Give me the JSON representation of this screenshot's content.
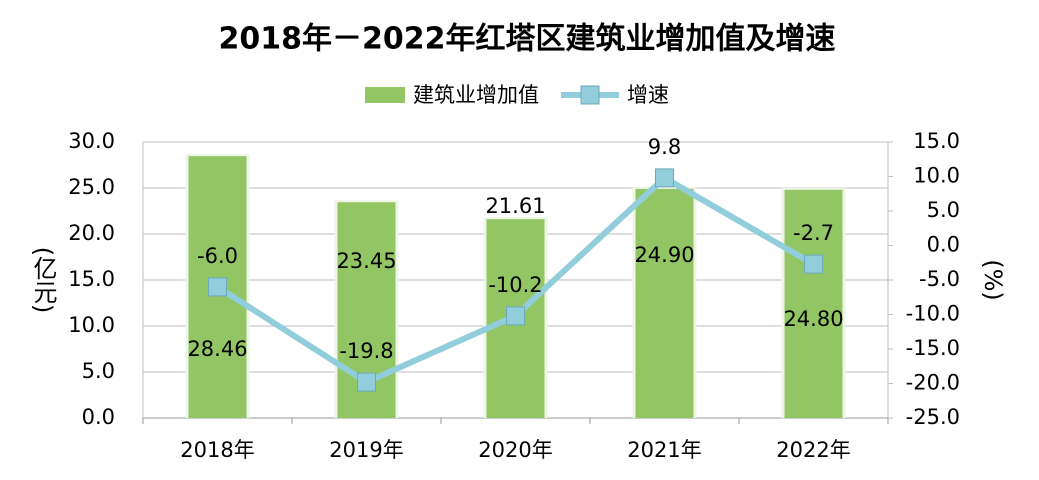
{
  "chart_data": {
    "type": "combo",
    "title": "2018年－2022年红塔区建筑业增加值及增速",
    "categories": [
      "2018年",
      "2019年",
      "2020年",
      "2021年",
      "2022年"
    ],
    "series": [
      {
        "name": "建筑业增加值",
        "type": "bar",
        "color": "#92c665",
        "values": [
          28.46,
          23.45,
          21.61,
          24.9,
          24.8
        ],
        "value_labels": [
          "28.46",
          "23.45",
          "21.61",
          "24.90",
          "24.80"
        ]
      },
      {
        "name": "增速",
        "type": "line",
        "axis": "y2",
        "color": "#92cddc",
        "values": [
          -6,
          -19.8,
          -10.2,
          9.8,
          -2.7
        ],
        "value_labels": [
          "-6.0",
          "-19.8",
          "-10.2",
          "9.8",
          "-2.7"
        ]
      }
    ],
    "ylabel": "(亿元)",
    "y2label": "(%)",
    "ylim": [
      0,
      30
    ],
    "yticks": [
      {
        "value": 0,
        "label": "0.0"
      },
      {
        "value": 5,
        "label": "5.0"
      },
      {
        "value": 10,
        "label": "10.0"
      },
      {
        "value": 15,
        "label": "15.0"
      },
      {
        "value": 20,
        "label": "20.0"
      },
      {
        "value": 25,
        "label": "25.0"
      },
      {
        "value": 30,
        "label": "30.0"
      }
    ],
    "y2lim": [
      -25,
      15
    ],
    "y2ticks": [
      {
        "value": -25,
        "label": "-25.0"
      },
      {
        "value": -20,
        "label": "-20.0"
      },
      {
        "value": -15,
        "label": "-15.0"
      },
      {
        "value": -10,
        "label": "-10.0"
      },
      {
        "value": -5,
        "label": "-5.0"
      },
      {
        "value": 0,
        "label": "0.0"
      },
      {
        "value": 5,
        "label": "5.0"
      },
      {
        "value": 10,
        "label": "10.0"
      },
      {
        "value": 15,
        "label": "15.0"
      }
    ],
    "grid": true,
    "legend": "top"
  }
}
